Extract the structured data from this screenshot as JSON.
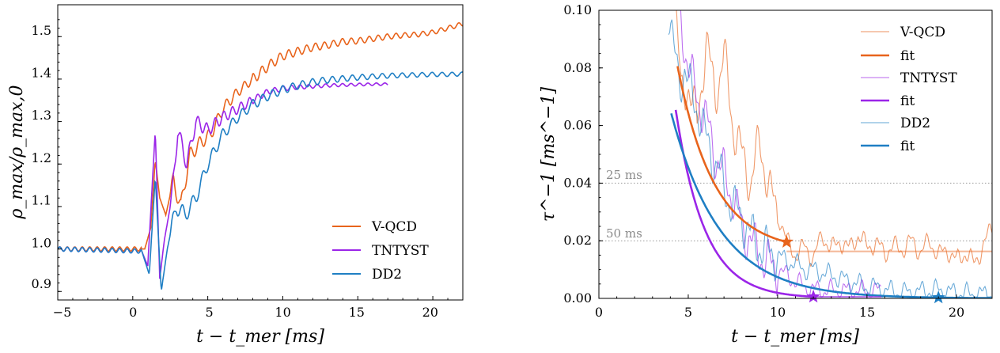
{
  "colors": {
    "vqcd": "#e8641c",
    "tntyst": "#9b25e8",
    "dd2": "#1f7fc4",
    "ref": "#9a9a9a"
  },
  "chart_data": [
    {
      "type": "line",
      "xlabel": "t − t_mer [ms]",
      "ylabel": "ρ_max/ρ_max,0",
      "xlim": [
        -5,
        22
      ],
      "ylim": [
        0.88,
        1.575
      ],
      "xticks": [
        "−5",
        "0",
        "5",
        "10",
        "15",
        "20"
      ],
      "yticks": [
        "0.9",
        "1.0",
        "1.1",
        "1.2",
        "1.3",
        "1.4",
        "1.5"
      ],
      "legend": "lower-right",
      "series": [
        {
          "name": "V-QCD",
          "color": "vqcd",
          "end": 22,
          "values": [
            [
              -5,
              1.0
            ],
            [
              0.8,
              1.0
            ],
            [
              1.2,
              1.05
            ],
            [
              1.5,
              1.21
            ],
            [
              1.8,
              1.12
            ],
            [
              2.2,
              1.08
            ],
            [
              2.7,
              1.16
            ],
            [
              3.2,
              1.1
            ],
            [
              3.8,
              1.22
            ],
            [
              4.5,
              1.25
            ],
            [
              5.2,
              1.27
            ],
            [
              6,
              1.33
            ],
            [
              7,
              1.37
            ],
            [
              8,
              1.4
            ],
            [
              9,
              1.43
            ],
            [
              10,
              1.455
            ],
            [
              11,
              1.465
            ],
            [
              12,
              1.475
            ],
            [
              13,
              1.48
            ],
            [
              14,
              1.488
            ],
            [
              15,
              1.49
            ],
            [
              16,
              1.495
            ],
            [
              17,
              1.5
            ],
            [
              18,
              1.503
            ],
            [
              19,
              1.505
            ],
            [
              20,
              1.51
            ],
            [
              21,
              1.52
            ],
            [
              22,
              1.53
            ]
          ]
        },
        {
          "name": "TNTYST",
          "color": "tntyst",
          "end": 17,
          "values": [
            [
              -5,
              1.0
            ],
            [
              0.6,
              0.995
            ],
            [
              1.0,
              0.96
            ],
            [
              1.5,
              1.28
            ],
            [
              1.8,
              0.93
            ],
            [
              2.1,
              1.02
            ],
            [
              2.6,
              1.12
            ],
            [
              3.0,
              1.28
            ],
            [
              3.6,
              1.2
            ],
            [
              4.2,
              1.3
            ],
            [
              5,
              1.28
            ],
            [
              6,
              1.31
            ],
            [
              7,
              1.33
            ],
            [
              8,
              1.35
            ],
            [
              9,
              1.37
            ],
            [
              10,
              1.378
            ],
            [
              11,
              1.381
            ],
            [
              12,
              1.383
            ],
            [
              13,
              1.385
            ],
            [
              14,
              1.386
            ],
            [
              15,
              1.387
            ],
            [
              16,
              1.388
            ],
            [
              17,
              1.388
            ]
          ]
        },
        {
          "name": "DD2",
          "color": "dd2",
          "end": 22,
          "values": [
            [
              -5,
              1.0
            ],
            [
              0.6,
              0.995
            ],
            [
              1.1,
              0.94
            ],
            [
              1.5,
              1.17
            ],
            [
              1.9,
              0.9
            ],
            [
              2.3,
              1.0
            ],
            [
              2.9,
              1.1
            ],
            [
              3.5,
              1.08
            ],
            [
              4.2,
              1.12
            ],
            [
              5,
              1.2
            ],
            [
              6,
              1.27
            ],
            [
              7,
              1.31
            ],
            [
              8,
              1.34
            ],
            [
              9,
              1.36
            ],
            [
              10,
              1.375
            ],
            [
              11,
              1.385
            ],
            [
              12,
              1.393
            ],
            [
              13,
              1.398
            ],
            [
              14,
              1.401
            ],
            [
              15,
              1.404
            ],
            [
              16,
              1.406
            ],
            [
              17,
              1.408
            ],
            [
              18,
              1.409
            ],
            [
              19,
              1.41
            ],
            [
              20,
              1.411
            ],
            [
              21,
              1.411
            ],
            [
              22,
              1.412
            ]
          ]
        }
      ]
    },
    {
      "type": "line",
      "xlabel": "t − t_mer [ms]",
      "ylabel": "τ^−1 [ms^−1]",
      "xlim": [
        0,
        22
      ],
      "ylim": [
        0,
        0.1
      ],
      "xticks": [
        "0",
        "5",
        "10",
        "15",
        "20"
      ],
      "yticks": [
        "0.00",
        "0.02",
        "0.04",
        "0.06",
        "0.08",
        "0.10"
      ],
      "legend": "top-right",
      "reference_lines": [
        {
          "y": 0.04,
          "label": "25 ms"
        },
        {
          "y": 0.02,
          "label": "50 ms"
        }
      ],
      "series": [
        {
          "name": "V-QCD",
          "kind": "raw",
          "color": "vqcd",
          "values": [
            [
              4.3,
              0.1
            ],
            [
              4.6,
              0.07
            ],
            [
              5,
              0.075
            ],
            [
              5.5,
              0.06
            ],
            [
              6,
              0.09
            ],
            [
              6.5,
              0.07
            ],
            [
              7,
              0.085
            ],
            [
              7.5,
              0.06
            ],
            [
              8,
              0.05
            ],
            [
              8.5,
              0.04
            ],
            [
              9,
              0.055
            ],
            [
              9.5,
              0.038
            ],
            [
              10,
              0.03
            ],
            [
              10.5,
              0.02
            ],
            [
              11,
              0.015
            ],
            [
              11.5,
              0.018
            ],
            [
              12,
              0.014
            ],
            [
              12.5,
              0.022
            ],
            [
              13,
              0.017
            ],
            [
              13.5,
              0.02
            ],
            [
              14,
              0.017
            ],
            [
              14.5,
              0.022
            ],
            [
              15,
              0.018
            ],
            [
              15.5,
              0.019
            ],
            [
              16,
              0.016
            ],
            [
              16.5,
              0.018
            ],
            [
              17,
              0.017
            ],
            [
              17.5,
              0.02
            ],
            [
              18,
              0.016
            ],
            [
              18.5,
              0.02
            ],
            [
              19,
              0.015
            ],
            [
              19.5,
              0.017
            ],
            [
              20,
              0.013
            ],
            [
              20.5,
              0.016
            ],
            [
              21,
              0.012
            ],
            [
              21.5,
              0.018
            ],
            [
              22,
              0.025
            ]
          ]
        },
        {
          "name": "fit",
          "kind": "fit",
          "color": "vqcd",
          "a": 0.55,
          "tau": 2.05,
          "plateau": 0.0163,
          "x_start": 4.4,
          "x_star": 10.5
        },
        {
          "name": "TNTYST",
          "kind": "raw",
          "color": "tntyst",
          "values": [
            [
              4.5,
              0.1
            ],
            [
              5,
              0.08
            ],
            [
              5.5,
              0.07
            ],
            [
              6,
              0.062
            ],
            [
              6.5,
              0.05
            ],
            [
              7,
              0.043
            ],
            [
              7.5,
              0.035
            ],
            [
              8,
              0.025
            ],
            [
              8.5,
              0.02
            ],
            [
              9,
              0.015
            ],
            [
              9.5,
              0.012
            ],
            [
              10,
              0.01
            ],
            [
              10.5,
              0.008
            ],
            [
              11,
              0.006
            ],
            [
              11.5,
              0.004
            ],
            [
              12,
              0.003
            ],
            [
              12.5,
              0.0028
            ],
            [
              13,
              0.0028
            ],
            [
              14,
              0.0027
            ],
            [
              15,
              0.0026
            ],
            [
              15.8,
              0.0026
            ]
          ]
        },
        {
          "name": "fit",
          "kind": "fit",
          "color": "tntyst",
          "a": 0.93,
          "tau": 1.62,
          "plateau": 0,
          "x_start": 4.3,
          "x_star": 12.0
        },
        {
          "name": "DD2",
          "kind": "raw",
          "color": "dd2",
          "values": [
            [
              3.9,
              0.1
            ],
            [
              4.2,
              0.085
            ],
            [
              4.5,
              0.075
            ],
            [
              4.8,
              0.08
            ],
            [
              5.2,
              0.07
            ],
            [
              5.6,
              0.065
            ],
            [
              6,
              0.055
            ],
            [
              6.3,
              0.05
            ],
            [
              6.7,
              0.045
            ],
            [
              7,
              0.038
            ],
            [
              7.5,
              0.032
            ],
            [
              8,
              0.028
            ],
            [
              8.5,
              0.022
            ],
            [
              9,
              0.018
            ],
            [
              9.5,
              0.016
            ],
            [
              10,
              0.015
            ],
            [
              10.5,
              0.013
            ],
            [
              11,
              0.012
            ],
            [
              11.5,
              0.01
            ],
            [
              12,
              0.01
            ],
            [
              12.5,
              0.009
            ],
            [
              13,
              0.008
            ],
            [
              13.5,
              0.007
            ],
            [
              14,
              0.006
            ],
            [
              14.5,
              0.005
            ],
            [
              15,
              0.004
            ],
            [
              15.5,
              0.004
            ],
            [
              16,
              0.003
            ],
            [
              17,
              0.002
            ],
            [
              18,
              0.0025
            ],
            [
              19,
              0.003
            ],
            [
              20,
              0.002
            ],
            [
              21,
              0.0015
            ],
            [
              22,
              0.0015
            ]
          ]
        },
        {
          "name": "fit",
          "kind": "fit",
          "color": "dd2",
          "a": 0.28,
          "tau": 2.75,
          "plateau": 0,
          "x_start": 4.05,
          "x_star": 19.0
        }
      ]
    }
  ]
}
